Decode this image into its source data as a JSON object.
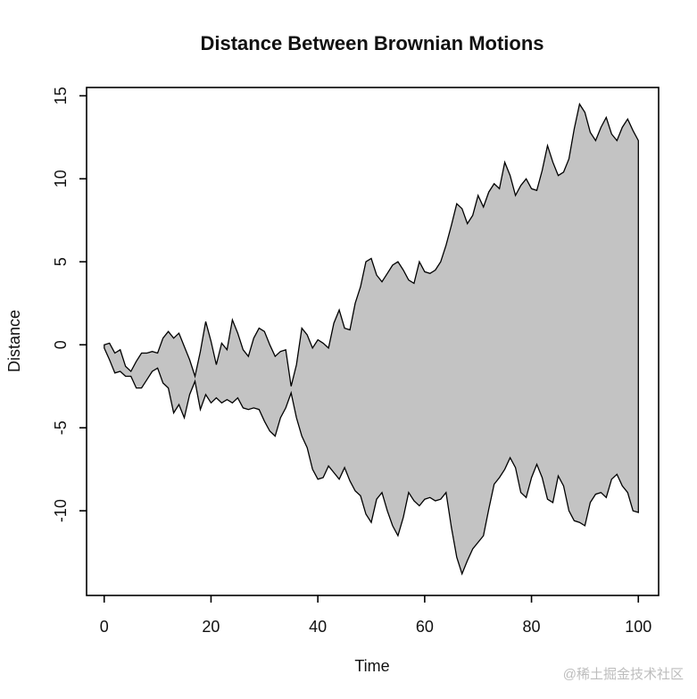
{
  "chart": {
    "title": "Distance Between Brownian Motions",
    "xlabel": "Time",
    "ylabel": "Distance"
  },
  "watermark": {
    "text": "@稀土掘金技术社区"
  },
  "colors": {
    "background": "#ffffff",
    "band_fill": "#c3c3c3",
    "band_border": "#000000",
    "axis": "#000000",
    "text": "#111111",
    "watermark": "#bdbdbd"
  },
  "chart_data": {
    "type": "area",
    "title": "Distance Between Brownian Motions",
    "xlabel": "Time",
    "ylabel": "Distance",
    "grid": false,
    "legend": "none",
    "fill_between_series": true,
    "x_ticks": [
      0,
      20,
      40,
      60,
      80,
      100
    ],
    "y_ticks": [
      -10,
      -5,
      0,
      5,
      10,
      15
    ],
    "xlim": [
      -3.3,
      103.8
    ],
    "ylim": [
      -15.1,
      15.5
    ],
    "x": [
      0,
      1,
      2,
      3,
      4,
      5,
      6,
      7,
      8,
      9,
      10,
      11,
      12,
      13,
      14,
      15,
      16,
      17,
      18,
      19,
      20,
      21,
      22,
      23,
      24,
      25,
      26,
      27,
      28,
      29,
      30,
      31,
      32,
      33,
      34,
      35,
      36,
      37,
      38,
      39,
      40,
      41,
      42,
      43,
      44,
      45,
      46,
      47,
      48,
      49,
      50,
      51,
      52,
      53,
      54,
      55,
      56,
      57,
      58,
      59,
      60,
      61,
      62,
      63,
      64,
      65,
      66,
      67,
      68,
      69,
      70,
      71,
      72,
      73,
      74,
      75,
      76,
      77,
      78,
      79,
      80,
      81,
      82,
      83,
      84,
      85,
      86,
      87,
      88,
      89,
      90,
      91,
      92,
      93,
      94,
      95,
      96,
      97,
      98,
      99,
      100
    ],
    "series": [
      {
        "name": "upper_envelope",
        "values": [
          0.0,
          0.1,
          -0.5,
          -0.3,
          -1.3,
          -1.6,
          -1.0,
          -0.5,
          -0.5,
          -0.4,
          -0.5,
          0.4,
          0.8,
          0.4,
          0.7,
          -0.1,
          -0.9,
          -1.9,
          -0.4,
          1.4,
          0.2,
          -1.2,
          0.1,
          -0.3,
          1.5,
          0.7,
          -0.3,
          -0.7,
          0.4,
          1.0,
          0.8,
          0.0,
          -0.7,
          -0.4,
          -0.3,
          -2.5,
          -1.2,
          1.0,
          0.6,
          -0.2,
          0.3,
          0.1,
          -0.2,
          1.3,
          2.1,
          1.0,
          0.9,
          2.5,
          3.5,
          5.0,
          5.2,
          4.2,
          3.8,
          4.3,
          4.8,
          5.0,
          4.5,
          3.9,
          3.7,
          5.0,
          4.4,
          4.3,
          4.5,
          5.0,
          6.0,
          7.2,
          8.5,
          8.2,
          7.3,
          7.8,
          9.0,
          8.3,
          9.2,
          9.7,
          9.4,
          11.0,
          10.2,
          9.0,
          9.6,
          10.0,
          9.4,
          9.3,
          10.5,
          12.0,
          11.0,
          10.2,
          10.4,
          11.2,
          13.0,
          14.5,
          14.0,
          12.8,
          12.3,
          13.1,
          13.7,
          12.7,
          12.3,
          13.1,
          13.6,
          12.9,
          12.3
        ]
      },
      {
        "name": "lower_envelope",
        "values": [
          -0.2,
          -0.9,
          -1.7,
          -1.6,
          -1.9,
          -1.9,
          -2.6,
          -2.6,
          -2.1,
          -1.6,
          -1.4,
          -2.3,
          -2.6,
          -4.1,
          -3.6,
          -4.4,
          -3.0,
          -2.2,
          -3.9,
          -3.0,
          -3.5,
          -3.2,
          -3.5,
          -3.3,
          -3.5,
          -3.2,
          -3.8,
          -3.9,
          -3.8,
          -3.9,
          -4.6,
          -5.2,
          -5.5,
          -4.4,
          -3.8,
          -2.9,
          -4.4,
          -5.5,
          -6.2,
          -7.5,
          -8.1,
          -8.0,
          -7.3,
          -7.7,
          -8.1,
          -7.4,
          -8.2,
          -8.8,
          -9.1,
          -10.2,
          -10.7,
          -9.3,
          -8.9,
          -10.0,
          -10.9,
          -11.5,
          -10.4,
          -8.9,
          -9.4,
          -9.7,
          -9.3,
          -9.2,
          -9.4,
          -9.3,
          -8.9,
          -11.0,
          -12.8,
          -13.8,
          -13.0,
          -12.3,
          -11.9,
          -11.5,
          -9.9,
          -8.4,
          -8.0,
          -7.5,
          -6.8,
          -7.4,
          -8.9,
          -9.2,
          -8.0,
          -7.2,
          -8.0,
          -9.3,
          -9.5,
          -7.9,
          -8.5,
          -10.0,
          -10.6,
          -10.7,
          -10.9,
          -9.5,
          -9.0,
          -8.9,
          -9.2,
          -8.1,
          -7.8,
          -8.5,
          -8.9,
          -10.0,
          -10.1
        ]
      }
    ]
  }
}
